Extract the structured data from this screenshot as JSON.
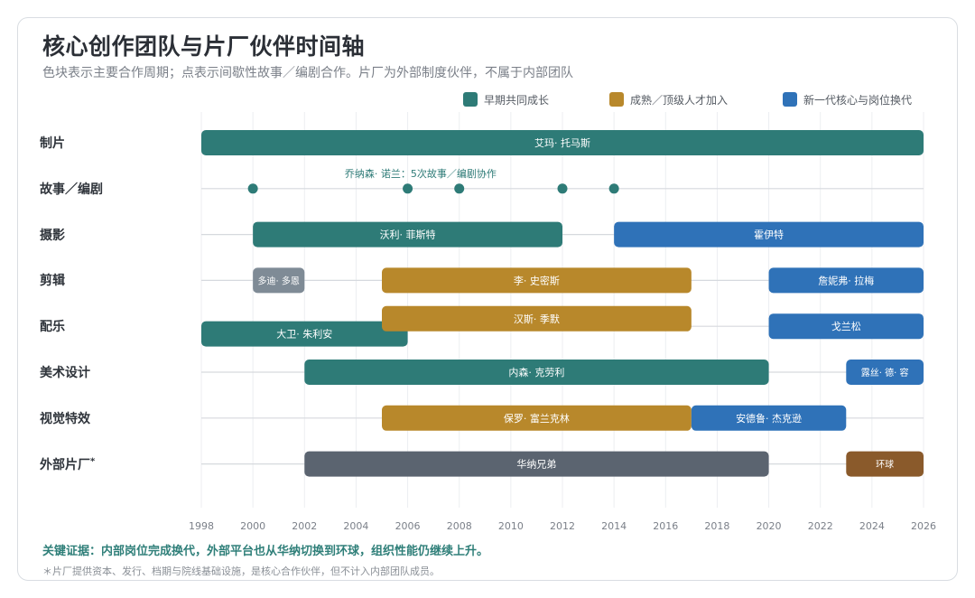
{
  "title": "核心创作团队与片厂伙伴时间轴",
  "subtitle": "色块表示主要合作周期；点表示间歇性故事／编剧合作。片厂为外部制度伙伴，不属于内部团队",
  "legend": [
    {
      "label": "早期共同成长",
      "color": "#2e7b77"
    },
    {
      "label": "成熟／顶级人才加入",
      "color": "#b8882b"
    },
    {
      "label": "新一代核心与岗位换代",
      "color": "#2f72b8"
    }
  ],
  "key_note": "关键证据：内部岗位完成换代，外部平台也从华纳切换到环球，组织性能仍继续上升。",
  "footnote": "＊片厂提供资本、发行、档期与院线基础设施，是核心合作伙伴，但不计入内部团队成员。",
  "chart_data": {
    "type": "timeline",
    "x_axis": {
      "min": 1998,
      "max": 2026,
      "ticks": [
        1998,
        2000,
        2002,
        2004,
        2006,
        2008,
        2010,
        2012,
        2014,
        2016,
        2018,
        2020,
        2022,
        2024,
        2026
      ]
    },
    "grid": true,
    "rows": [
      {
        "label": "制片",
        "sup": "",
        "bars": [
          {
            "start": 1998,
            "end": 2026,
            "label": "艾玛· 托马斯",
            "color": "#2e7b77"
          }
        ]
      },
      {
        "label": "故事／编剧",
        "sup": "",
        "points": [
          2000,
          2006,
          2008,
          2012,
          2014
        ],
        "point_color": "#2e7b77",
        "annotation": {
          "text": "乔纳森· 诺兰：5次故事／编剧协作",
          "x": 2006.5
        }
      },
      {
        "label": "摄影",
        "sup": "",
        "bars": [
          {
            "start": 2000,
            "end": 2012,
            "label": "沃利· 菲斯特",
            "color": "#2e7b77"
          },
          {
            "start": 2014,
            "end": 2026,
            "label": "霍伊特",
            "color": "#2f72b8"
          }
        ]
      },
      {
        "label": "剪辑",
        "sup": "",
        "bars": [
          {
            "start": 2000,
            "end": 2002,
            "label": "多迪· 多恩",
            "color": "#7f8b96",
            "small": true
          },
          {
            "start": 2005,
            "end": 2017,
            "label": "李· 史密斯",
            "color": "#b8882b"
          },
          {
            "start": 2020,
            "end": 2026,
            "label": "詹妮弗· 拉梅",
            "color": "#2f72b8"
          }
        ]
      },
      {
        "label": "配乐",
        "sup": "",
        "bars": [
          {
            "start": 1998,
            "end": 2006,
            "label": "大卫· 朱利安",
            "color": "#2e7b77",
            "offset": 0.3
          },
          {
            "start": 2005,
            "end": 2017,
            "label": "汉斯· 季默",
            "color": "#b8882b",
            "offset": -0.3
          },
          {
            "start": 2020,
            "end": 2026,
            "label": "戈兰松",
            "color": "#2f72b8"
          }
        ]
      },
      {
        "label": "美术设计",
        "sup": "",
        "bars": [
          {
            "start": 2002,
            "end": 2020,
            "label": "内森· 克劳利",
            "color": "#2e7b77"
          },
          {
            "start": 2023,
            "end": 2026,
            "label": "露丝· 德· 容",
            "color": "#2f72b8",
            "small": true
          }
        ]
      },
      {
        "label": "视觉特效",
        "sup": "",
        "bars": [
          {
            "start": 2005,
            "end": 2017,
            "label": "保罗· 富兰克林",
            "color": "#b8882b"
          },
          {
            "start": 2017,
            "end": 2023,
            "label": "安德鲁· 杰克逊",
            "color": "#2f72b8"
          }
        ]
      },
      {
        "label": "外部片厂",
        "sup": "*",
        "bars": [
          {
            "start": 2002,
            "end": 2020,
            "label": "华纳兄弟",
            "color": "#5b6470"
          },
          {
            "start": 2023,
            "end": 2026,
            "label": "环球",
            "color": "#8a5a2b",
            "small": true
          }
        ]
      }
    ]
  }
}
